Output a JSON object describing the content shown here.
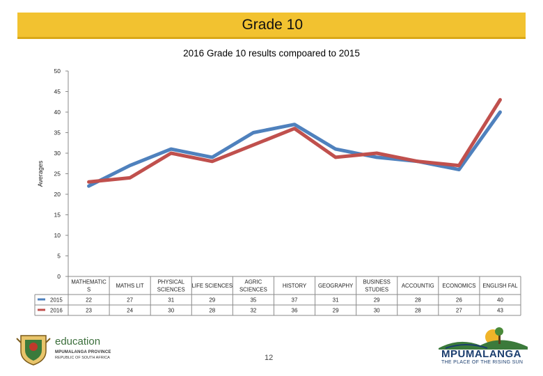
{
  "banner": {
    "title": "Grade 10"
  },
  "page": {
    "number": "12"
  },
  "logos": {
    "left_main": "education",
    "left_sub1": "MPUMALANGA PROVINCE",
    "left_sub2": "REPUBLIC OF SOUTH AFRICA",
    "right_main": "MPUMALANGA",
    "right_sub": "THE PLACE OF THE RISING SUN"
  },
  "chart_data": {
    "type": "line",
    "title": "2016 Grade 10 results compoared to 2015",
    "ylabel": "Averages",
    "xlabel": "",
    "ylim": [
      0,
      50
    ],
    "yticks": [
      0,
      5,
      10,
      15,
      20,
      25,
      30,
      35,
      40,
      45,
      50
    ],
    "grid": false,
    "legend": "data-table",
    "categories": [
      [
        "MATHEMATIC",
        "S"
      ],
      [
        "MATHS LIT"
      ],
      [
        "PHYSICAL",
        "SCIENCES"
      ],
      [
        "LIFE SCIENCES"
      ],
      [
        "AGRIC",
        "SCIENCES"
      ],
      [
        "HISTORY"
      ],
      [
        "GEOGRAPHY"
      ],
      [
        "BUSINESS",
        "STUDIES"
      ],
      [
        "ACCOUNTIG"
      ],
      [
        "ECONOMICS"
      ],
      [
        "ENGLISH FAL"
      ]
    ],
    "series": [
      {
        "name": "2015",
        "color": "#4f81bd",
        "values": [
          22,
          27,
          31,
          29,
          35,
          37,
          31,
          29,
          28,
          26,
          40
        ]
      },
      {
        "name": "2016",
        "color": "#c0504d",
        "values": [
          23,
          24,
          30,
          28,
          32,
          36,
          29,
          30,
          28,
          27,
          43
        ]
      }
    ]
  }
}
